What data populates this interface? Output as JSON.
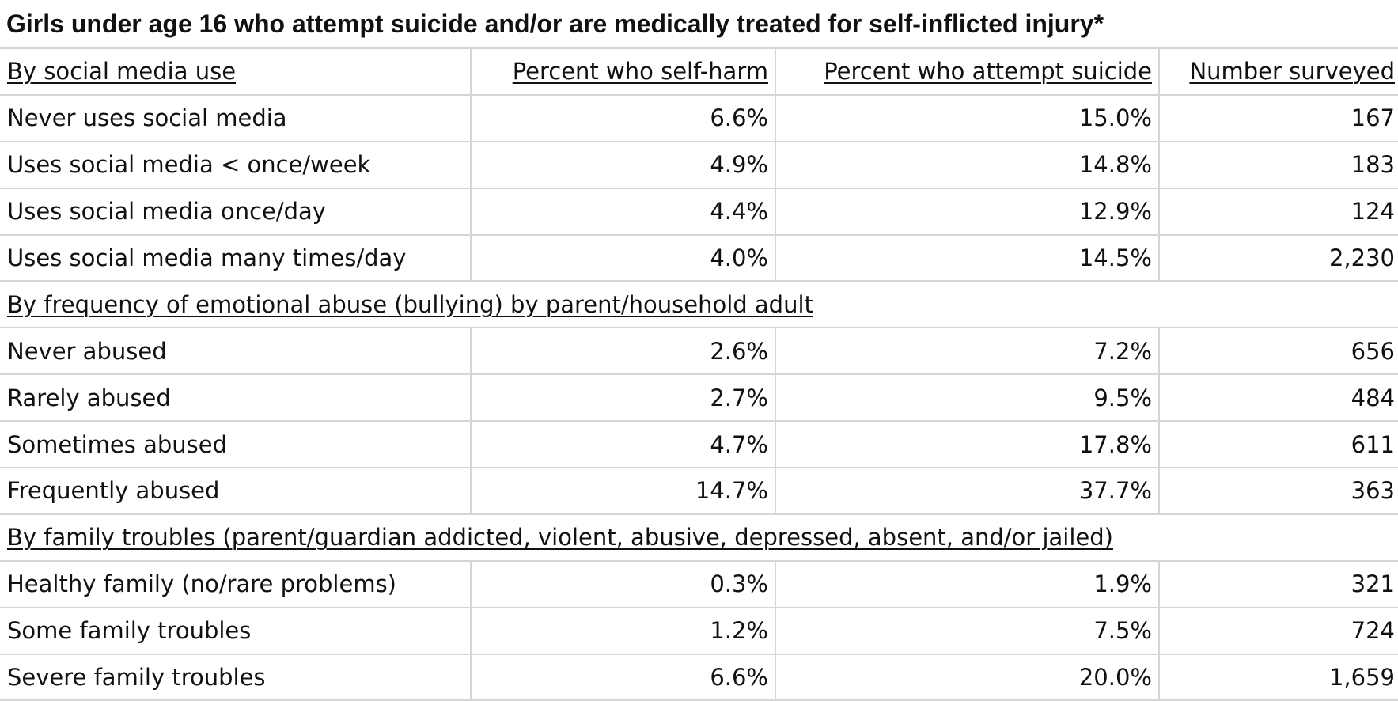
{
  "chart_data": {
    "type": "table",
    "title": "Girls under age 16 who attempt suicide and/or are medically treated for self-inflicted injury*",
    "columns": [
      "Percent who self-harm",
      "Percent who attempt suicide",
      "Number surveyed"
    ],
    "groups": [
      {
        "heading": "By social media use",
        "rows": [
          {
            "label": "Never uses social media",
            "self_harm": "6.6%",
            "attempt_suicide": "15.0%",
            "surveyed": "167"
          },
          {
            "label": "Uses social media < once/week",
            "self_harm": "4.9%",
            "attempt_suicide": "14.8%",
            "surveyed": "183"
          },
          {
            "label": "Uses social media once/day",
            "self_harm": "4.4%",
            "attempt_suicide": "12.9%",
            "surveyed": "124"
          },
          {
            "label": "Uses social media many times/day",
            "self_harm": "4.0%",
            "attempt_suicide": "14.5%",
            "surveyed": "2,230"
          }
        ]
      },
      {
        "heading": "By frequency of emotional abuse (bullying) by parent/household adult",
        "rows": [
          {
            "label": "Never abused",
            "self_harm": "2.6%",
            "attempt_suicide": "7.2%",
            "surveyed": "656"
          },
          {
            "label": "Rarely abused",
            "self_harm": "2.7%",
            "attempt_suicide": "9.5%",
            "surveyed": "484"
          },
          {
            "label": "Sometimes abused",
            "self_harm": "4.7%",
            "attempt_suicide": "17.8%",
            "surveyed": "611"
          },
          {
            "label": "Frequently abused",
            "self_harm": "14.7%",
            "attempt_suicide": "37.7%",
            "surveyed": "363"
          }
        ]
      },
      {
        "heading": "By family troubles (parent/guardian addicted, violent, abusive, depressed, absent, and/or jailed)",
        "rows": [
          {
            "label": "Healthy family (no/rare problems)",
            "self_harm": "0.3%",
            "attempt_suicide": "1.9%",
            "surveyed": "321"
          },
          {
            "label": "Some family troubles",
            "self_harm": "1.2%",
            "attempt_suicide": "7.5%",
            "surveyed": "724"
          },
          {
            "label": "Severe family troubles",
            "self_harm": "6.6%",
            "attempt_suicide": "20.0%",
            "surveyed": "1,659"
          }
        ]
      }
    ]
  }
}
